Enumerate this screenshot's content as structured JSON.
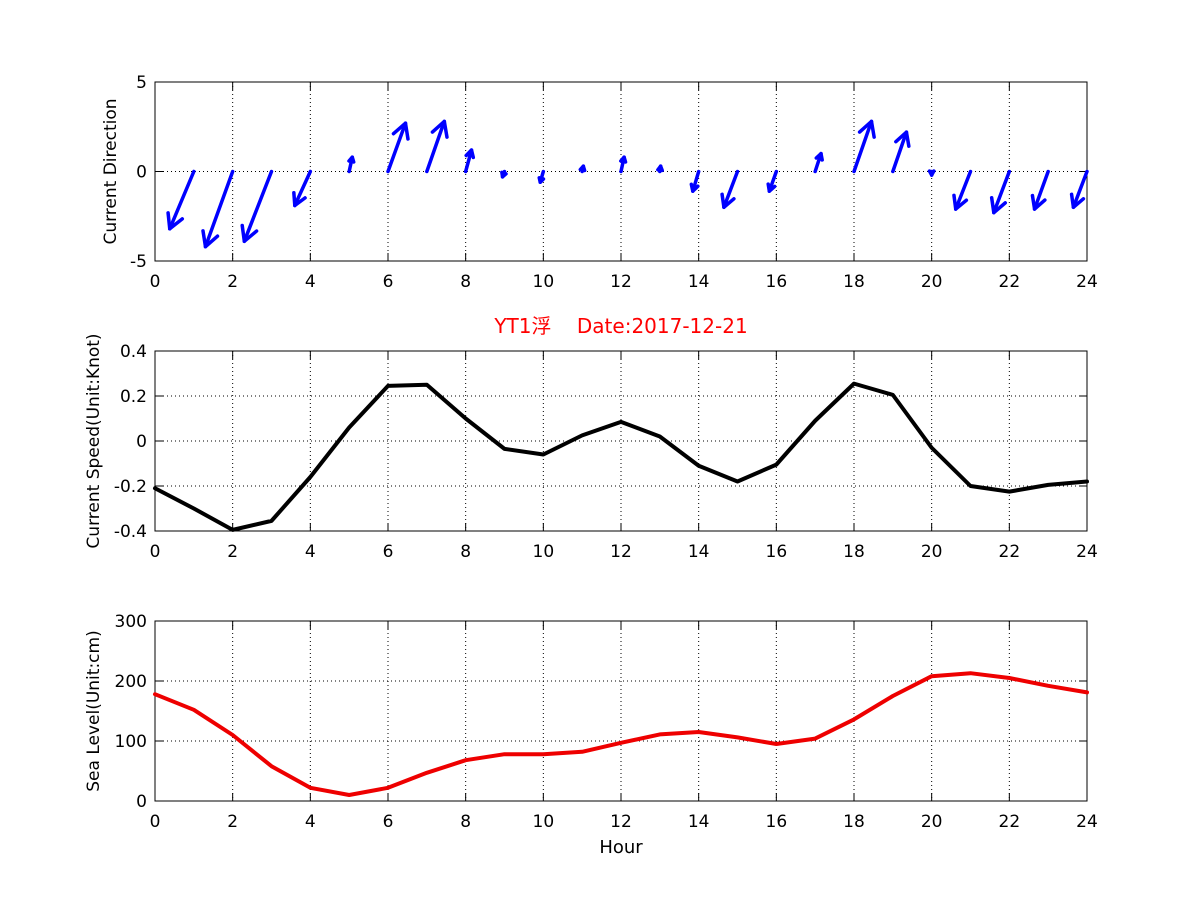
{
  "chart_data": [
    {
      "type": "quiver",
      "title": "",
      "xlabel": "",
      "ylabel": "Current Direction",
      "xlim": [
        0,
        24
      ],
      "ylim": [
        -5,
        5
      ],
      "xticks": [
        0,
        2,
        4,
        6,
        8,
        10,
        12,
        14,
        16,
        18,
        20,
        22,
        24
      ],
      "yticks": [
        -5,
        0,
        5
      ],
      "grid": true,
      "color": "#0000ff",
      "vectors": [
        {
          "x": 0,
          "u": 0,
          "v": 0
        },
        {
          "x": 1,
          "u": -0.62,
          "v": -3.2
        },
        {
          "x": 2,
          "u": -0.7,
          "v": -4.2
        },
        {
          "x": 3,
          "u": -0.7,
          "v": -3.9
        },
        {
          "x": 4,
          "u": -0.4,
          "v": -1.9
        },
        {
          "x": 5,
          "u": 0.08,
          "v": 0.8
        },
        {
          "x": 6,
          "u": 0.45,
          "v": 2.7
        },
        {
          "x": 7,
          "u": 0.45,
          "v": 2.8
        },
        {
          "x": 8,
          "u": 0.15,
          "v": 1.2
        },
        {
          "x": 9,
          "u": -0.05,
          "v": -0.3
        },
        {
          "x": 10,
          "u": -0.08,
          "v": -0.6
        },
        {
          "x": 11,
          "u": 0.03,
          "v": 0.3
        },
        {
          "x": 12,
          "u": 0.08,
          "v": 0.8
        },
        {
          "x": 13,
          "u": 0.02,
          "v": 0.3
        },
        {
          "x": 14,
          "u": -0.15,
          "v": -1.1
        },
        {
          "x": 15,
          "u": -0.35,
          "v": -2.0
        },
        {
          "x": 16,
          "u": -0.18,
          "v": -1.1
        },
        {
          "x": 17,
          "u": 0.15,
          "v": 1.0
        },
        {
          "x": 18,
          "u": 0.45,
          "v": 2.8
        },
        {
          "x": 19,
          "u": 0.35,
          "v": 2.2
        },
        {
          "x": 20,
          "u": 0.0,
          "v": -0.2
        },
        {
          "x": 21,
          "u": -0.38,
          "v": -2.1
        },
        {
          "x": 22,
          "u": -0.4,
          "v": -2.3
        },
        {
          "x": 23,
          "u": -0.35,
          "v": -2.1
        },
        {
          "x": 24,
          "u": -0.35,
          "v": -2.0
        }
      ]
    },
    {
      "type": "line",
      "title": "YT1浮    Date:2017-12-21",
      "title_color": "#ff0000",
      "xlabel": "",
      "ylabel": "Current Speed(Unit:Knot)",
      "xlim": [
        0,
        24
      ],
      "ylim": [
        -0.4,
        0.4
      ],
      "xticks": [
        0,
        2,
        4,
        6,
        8,
        10,
        12,
        14,
        16,
        18,
        20,
        22,
        24
      ],
      "yticks": [
        -0.4,
        -0.2,
        0,
        0.2,
        0.4
      ],
      "grid": true,
      "color": "#000000",
      "x": [
        0,
        1,
        2,
        3,
        4,
        5,
        6,
        7,
        8,
        9,
        10,
        11,
        12,
        13,
        14,
        15,
        16,
        17,
        18,
        19,
        20,
        21,
        22,
        23,
        24
      ],
      "y": [
        -0.21,
        -0.3,
        -0.395,
        -0.355,
        -0.16,
        0.06,
        0.245,
        0.25,
        0.1,
        -0.035,
        -0.06,
        0.025,
        0.085,
        0.02,
        -0.11,
        -0.18,
        -0.105,
        0.09,
        0.255,
        0.205,
        -0.03,
        -0.2,
        -0.225,
        -0.195,
        -0.18
      ]
    },
    {
      "type": "line",
      "title": "",
      "xlabel": "Hour",
      "ylabel": "Sea Level(Unit:cm)",
      "xlim": [
        0,
        24
      ],
      "ylim": [
        0,
        300
      ],
      "xticks": [
        0,
        2,
        4,
        6,
        8,
        10,
        12,
        14,
        16,
        18,
        20,
        22,
        24
      ],
      "yticks": [
        0,
        100,
        200,
        300
      ],
      "grid": true,
      "color": "#ee0000",
      "x": [
        0,
        1,
        2,
        3,
        4,
        5,
        6,
        7,
        8,
        9,
        10,
        11,
        12,
        13,
        14,
        15,
        16,
        17,
        18,
        19,
        20,
        21,
        22,
        23,
        24
      ],
      "y": [
        178,
        152,
        110,
        58,
        22,
        10,
        22,
        47,
        68,
        78,
        78,
        82,
        97,
        111,
        115,
        106,
        95,
        104,
        136,
        175,
        208,
        213,
        205,
        192,
        181
      ]
    }
  ]
}
